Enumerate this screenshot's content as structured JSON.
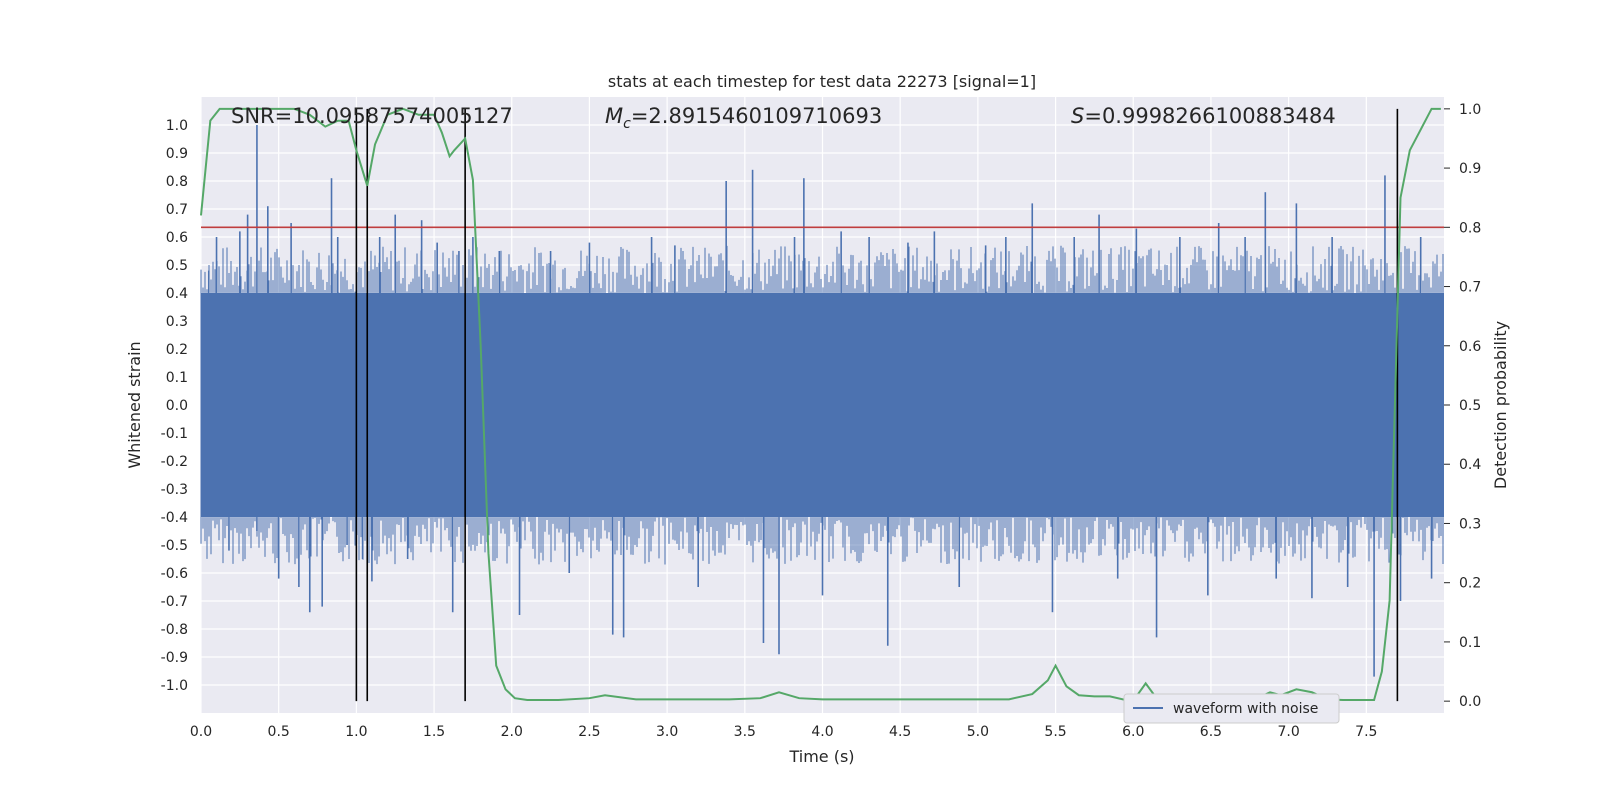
{
  "chart_data": {
    "type": "line",
    "title": "stats at each timestep for test data 22273 [signal=1]",
    "xlabel": "Time (s)",
    "ylabel_left": "Whitened strain",
    "ylabel_right": "Detection probability",
    "xlim": [
      0.0,
      8.0
    ],
    "ylim_left": [
      -1.1,
      1.1
    ],
    "ylim_right": [
      -0.02,
      1.02
    ],
    "x_ticks": [
      "0.0",
      "0.5",
      "1.0",
      "1.5",
      "2.0",
      "2.5",
      "3.0",
      "3.5",
      "4.0",
      "4.5",
      "5.0",
      "5.5",
      "6.0",
      "6.5",
      "7.0",
      "7.5"
    ],
    "y_left_ticks": [
      "1.0",
      "0.9",
      "0.8",
      "0.7",
      "0.6",
      "0.5",
      "0.4",
      "0.3",
      "0.2",
      "0.1",
      "0.0",
      "-0.1",
      "-0.2",
      "-0.3",
      "-0.4",
      "-0.5",
      "-0.6",
      "-0.7",
      "-0.8",
      "-0.9",
      "-1.0"
    ],
    "y_right_ticks": [
      "1.0",
      "0.9",
      "0.8",
      "0.7",
      "0.6",
      "0.5",
      "0.4",
      "0.3",
      "0.2",
      "0.1",
      "0.0"
    ],
    "grid": true,
    "legend": {
      "entries": [
        "waveform with noise"
      ],
      "placement": "lower-right"
    },
    "annotations": {
      "snr": "SNR=10.09587574005127",
      "mc_symbol": "M",
      "mc_sub": "c",
      "mc_value": "=2.8915460109710693",
      "s_symbol": "S",
      "s_value": "=0.9998266100883484"
    },
    "threshold": {
      "value": 0.8,
      "color": "#c03d3e"
    },
    "vlines": [
      1.0,
      1.07,
      1.7,
      7.7
    ],
    "series": [
      {
        "name": "waveform with noise",
        "axis": "left",
        "color": "#4c72b0",
        "envelope": 0.4,
        "spikes": [
          [
            0.05,
            0.48
          ],
          [
            0.1,
            0.6
          ],
          [
            0.18,
            -0.52
          ],
          [
            0.25,
            0.62
          ],
          [
            0.3,
            0.68
          ],
          [
            0.36,
            1.0
          ],
          [
            0.36,
            -0.45
          ],
          [
            0.43,
            0.71
          ],
          [
            0.5,
            -0.62
          ],
          [
            0.58,
            0.65
          ],
          [
            0.63,
            -0.65
          ],
          [
            0.7,
            -0.74
          ],
          [
            0.78,
            -0.72
          ],
          [
            0.84,
            0.81
          ],
          [
            0.88,
            0.6
          ],
          [
            0.94,
            -0.5
          ],
          [
            1.04,
            -0.55
          ],
          [
            1.1,
            -0.63
          ],
          [
            1.15,
            0.6
          ],
          [
            1.25,
            0.68
          ],
          [
            1.33,
            -0.55
          ],
          [
            1.42,
            0.66
          ],
          [
            1.52,
            0.58
          ],
          [
            1.62,
            -0.74
          ],
          [
            1.66,
            0.55
          ],
          [
            1.75,
            0.6
          ],
          [
            1.92,
            0.55
          ],
          [
            2.05,
            -0.75
          ],
          [
            2.25,
            0.55
          ],
          [
            2.37,
            -0.6
          ],
          [
            2.5,
            0.58
          ],
          [
            2.65,
            -0.82
          ],
          [
            2.72,
            -0.83
          ],
          [
            2.9,
            0.6
          ],
          [
            3.05,
            0.57
          ],
          [
            3.2,
            -0.65
          ],
          [
            3.38,
            0.8
          ],
          [
            3.55,
            0.84
          ],
          [
            3.62,
            -0.85
          ],
          [
            3.72,
            -0.89
          ],
          [
            3.82,
            0.6
          ],
          [
            3.88,
            0.81
          ],
          [
            4.0,
            -0.68
          ],
          [
            4.12,
            0.62
          ],
          [
            4.3,
            0.6
          ],
          [
            4.42,
            -0.86
          ],
          [
            4.55,
            0.58
          ],
          [
            4.72,
            0.62
          ],
          [
            4.88,
            -0.65
          ],
          [
            5.05,
            0.57
          ],
          [
            5.18,
            0.6
          ],
          [
            5.35,
            0.72
          ],
          [
            5.48,
            -0.74
          ],
          [
            5.62,
            0.6
          ],
          [
            5.78,
            0.68
          ],
          [
            5.9,
            -0.62
          ],
          [
            6.02,
            0.63
          ],
          [
            6.15,
            -0.83
          ],
          [
            6.3,
            0.6
          ],
          [
            6.48,
            -0.68
          ],
          [
            6.55,
            0.65
          ],
          [
            6.72,
            0.6
          ],
          [
            6.85,
            0.76
          ],
          [
            6.92,
            -0.62
          ],
          [
            7.05,
            0.72
          ],
          [
            7.15,
            -0.69
          ],
          [
            7.28,
            0.6
          ],
          [
            7.38,
            -0.65
          ],
          [
            7.55,
            -0.97
          ],
          [
            7.62,
            0.82
          ],
          [
            7.72,
            -0.7
          ],
          [
            7.85,
            0.6
          ],
          [
            7.92,
            -0.62
          ]
        ]
      },
      {
        "name": "detection probability",
        "axis": "right",
        "color": "#55a868",
        "x": [
          0.0,
          0.06,
          0.12,
          0.2,
          0.3,
          0.4,
          0.5,
          0.6,
          0.7,
          0.8,
          0.88,
          0.95,
          1.0,
          1.07,
          1.12,
          1.2,
          1.3,
          1.4,
          1.5,
          1.55,
          1.6,
          1.63,
          1.7,
          1.75,
          1.8,
          1.85,
          1.9,
          1.96,
          2.02,
          2.1,
          2.3,
          2.5,
          2.6,
          2.8,
          3.0,
          3.2,
          3.4,
          3.6,
          3.72,
          3.85,
          4.0,
          4.3,
          4.6,
          5.0,
          5.2,
          5.35,
          5.45,
          5.5,
          5.57,
          5.65,
          5.75,
          5.85,
          5.95,
          6.02,
          6.08,
          6.15,
          6.25,
          6.32,
          6.5,
          6.7,
          6.8,
          6.88,
          6.95,
          7.05,
          7.15,
          7.25,
          7.35,
          7.45,
          7.55,
          7.6,
          7.65,
          7.72,
          7.78,
          7.84,
          7.92,
          7.98
        ],
        "y": [
          0.82,
          0.98,
          1.0,
          1.0,
          1.0,
          1.0,
          1.0,
          1.0,
          0.99,
          0.97,
          0.98,
          0.98,
          0.93,
          0.87,
          0.94,
          0.99,
          1.0,
          0.99,
          0.99,
          0.96,
          0.92,
          0.93,
          0.95,
          0.88,
          0.6,
          0.25,
          0.06,
          0.02,
          0.005,
          0.002,
          0.002,
          0.005,
          0.01,
          0.003,
          0.003,
          0.003,
          0.003,
          0.005,
          0.015,
          0.005,
          0.003,
          0.003,
          0.003,
          0.003,
          0.003,
          0.012,
          0.035,
          0.06,
          0.025,
          0.01,
          0.008,
          0.008,
          0.002,
          0.008,
          0.03,
          0.005,
          0.002,
          0.006,
          0.002,
          0.005,
          0.005,
          0.015,
          0.01,
          0.02,
          0.015,
          0.003,
          0.002,
          0.002,
          0.002,
          0.05,
          0.17,
          0.85,
          0.93,
          0.96,
          1.0,
          1.0
        ]
      }
    ]
  }
}
